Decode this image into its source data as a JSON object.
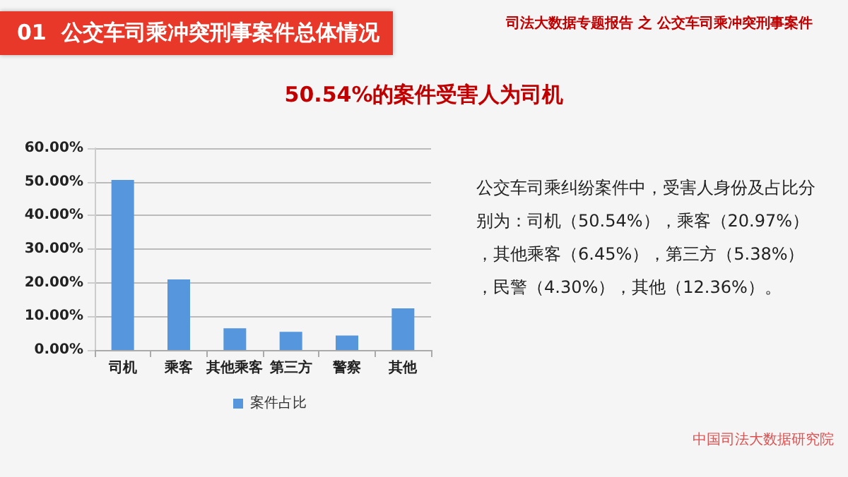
{
  "chart_data": {
    "type": "bar",
    "title": "01  公交车司乘冲突刑事案件总体情况",
    "subtitle": "50.54%的案件受害人为司机",
    "categories": [
      "司机",
      "乘客",
      "其他乘客",
      "第三方",
      "警察",
      "其他"
    ],
    "series": [
      {
        "name": "案件占比",
        "color": "#5596dc",
        "values": [
          50.54,
          20.97,
          6.45,
          5.38,
          4.3,
          12.36
        ]
      }
    ],
    "ylim": [
      0,
      60
    ],
    "yticks": [
      {
        "value": 0,
        "label": "0.00%"
      },
      {
        "value": 10,
        "label": "10.00%"
      },
      {
        "value": 20,
        "label": "20.00%"
      },
      {
        "value": 30,
        "label": "30.00%"
      },
      {
        "value": 40,
        "label": "40.00%"
      },
      {
        "value": 50,
        "label": "50.00%"
      },
      {
        "value": 60,
        "label": "60.00%"
      }
    ],
    "grid": "y",
    "legend": "bottom",
    "annotations": [
      "司法大数据专题报告 之 公交车司乘冲突刑事案件",
      "公交车司乘纠纷案件中，受害人身份及占比分别为：司机（50.54%），乘客（20.97%），其他乘客（6.45%），第三方（5.38%），民警（4.30%），其他（12.36%）。",
      "中国司法大数据研究院"
    ]
  }
}
